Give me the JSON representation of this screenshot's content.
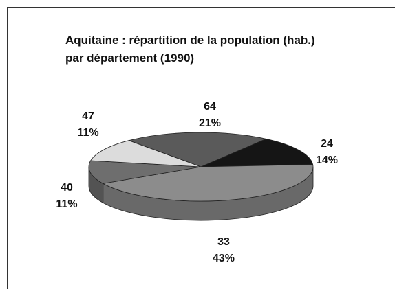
{
  "chart_data": {
    "type": "pie",
    "title": "Aquitaine : répartition de la population (hab.) par département (1990)",
    "categories": [
      "64",
      "24",
      "33",
      "40",
      "47"
    ],
    "values": [
      21,
      14,
      43,
      11,
      11
    ],
    "value_labels": [
      "21%",
      "14%",
      "43%",
      "11%",
      "11%"
    ],
    "colors": [
      "#5a5a5a",
      "#151515",
      "#8c8c8c",
      "#6e6e6e",
      "#dcdcdc"
    ]
  }
}
